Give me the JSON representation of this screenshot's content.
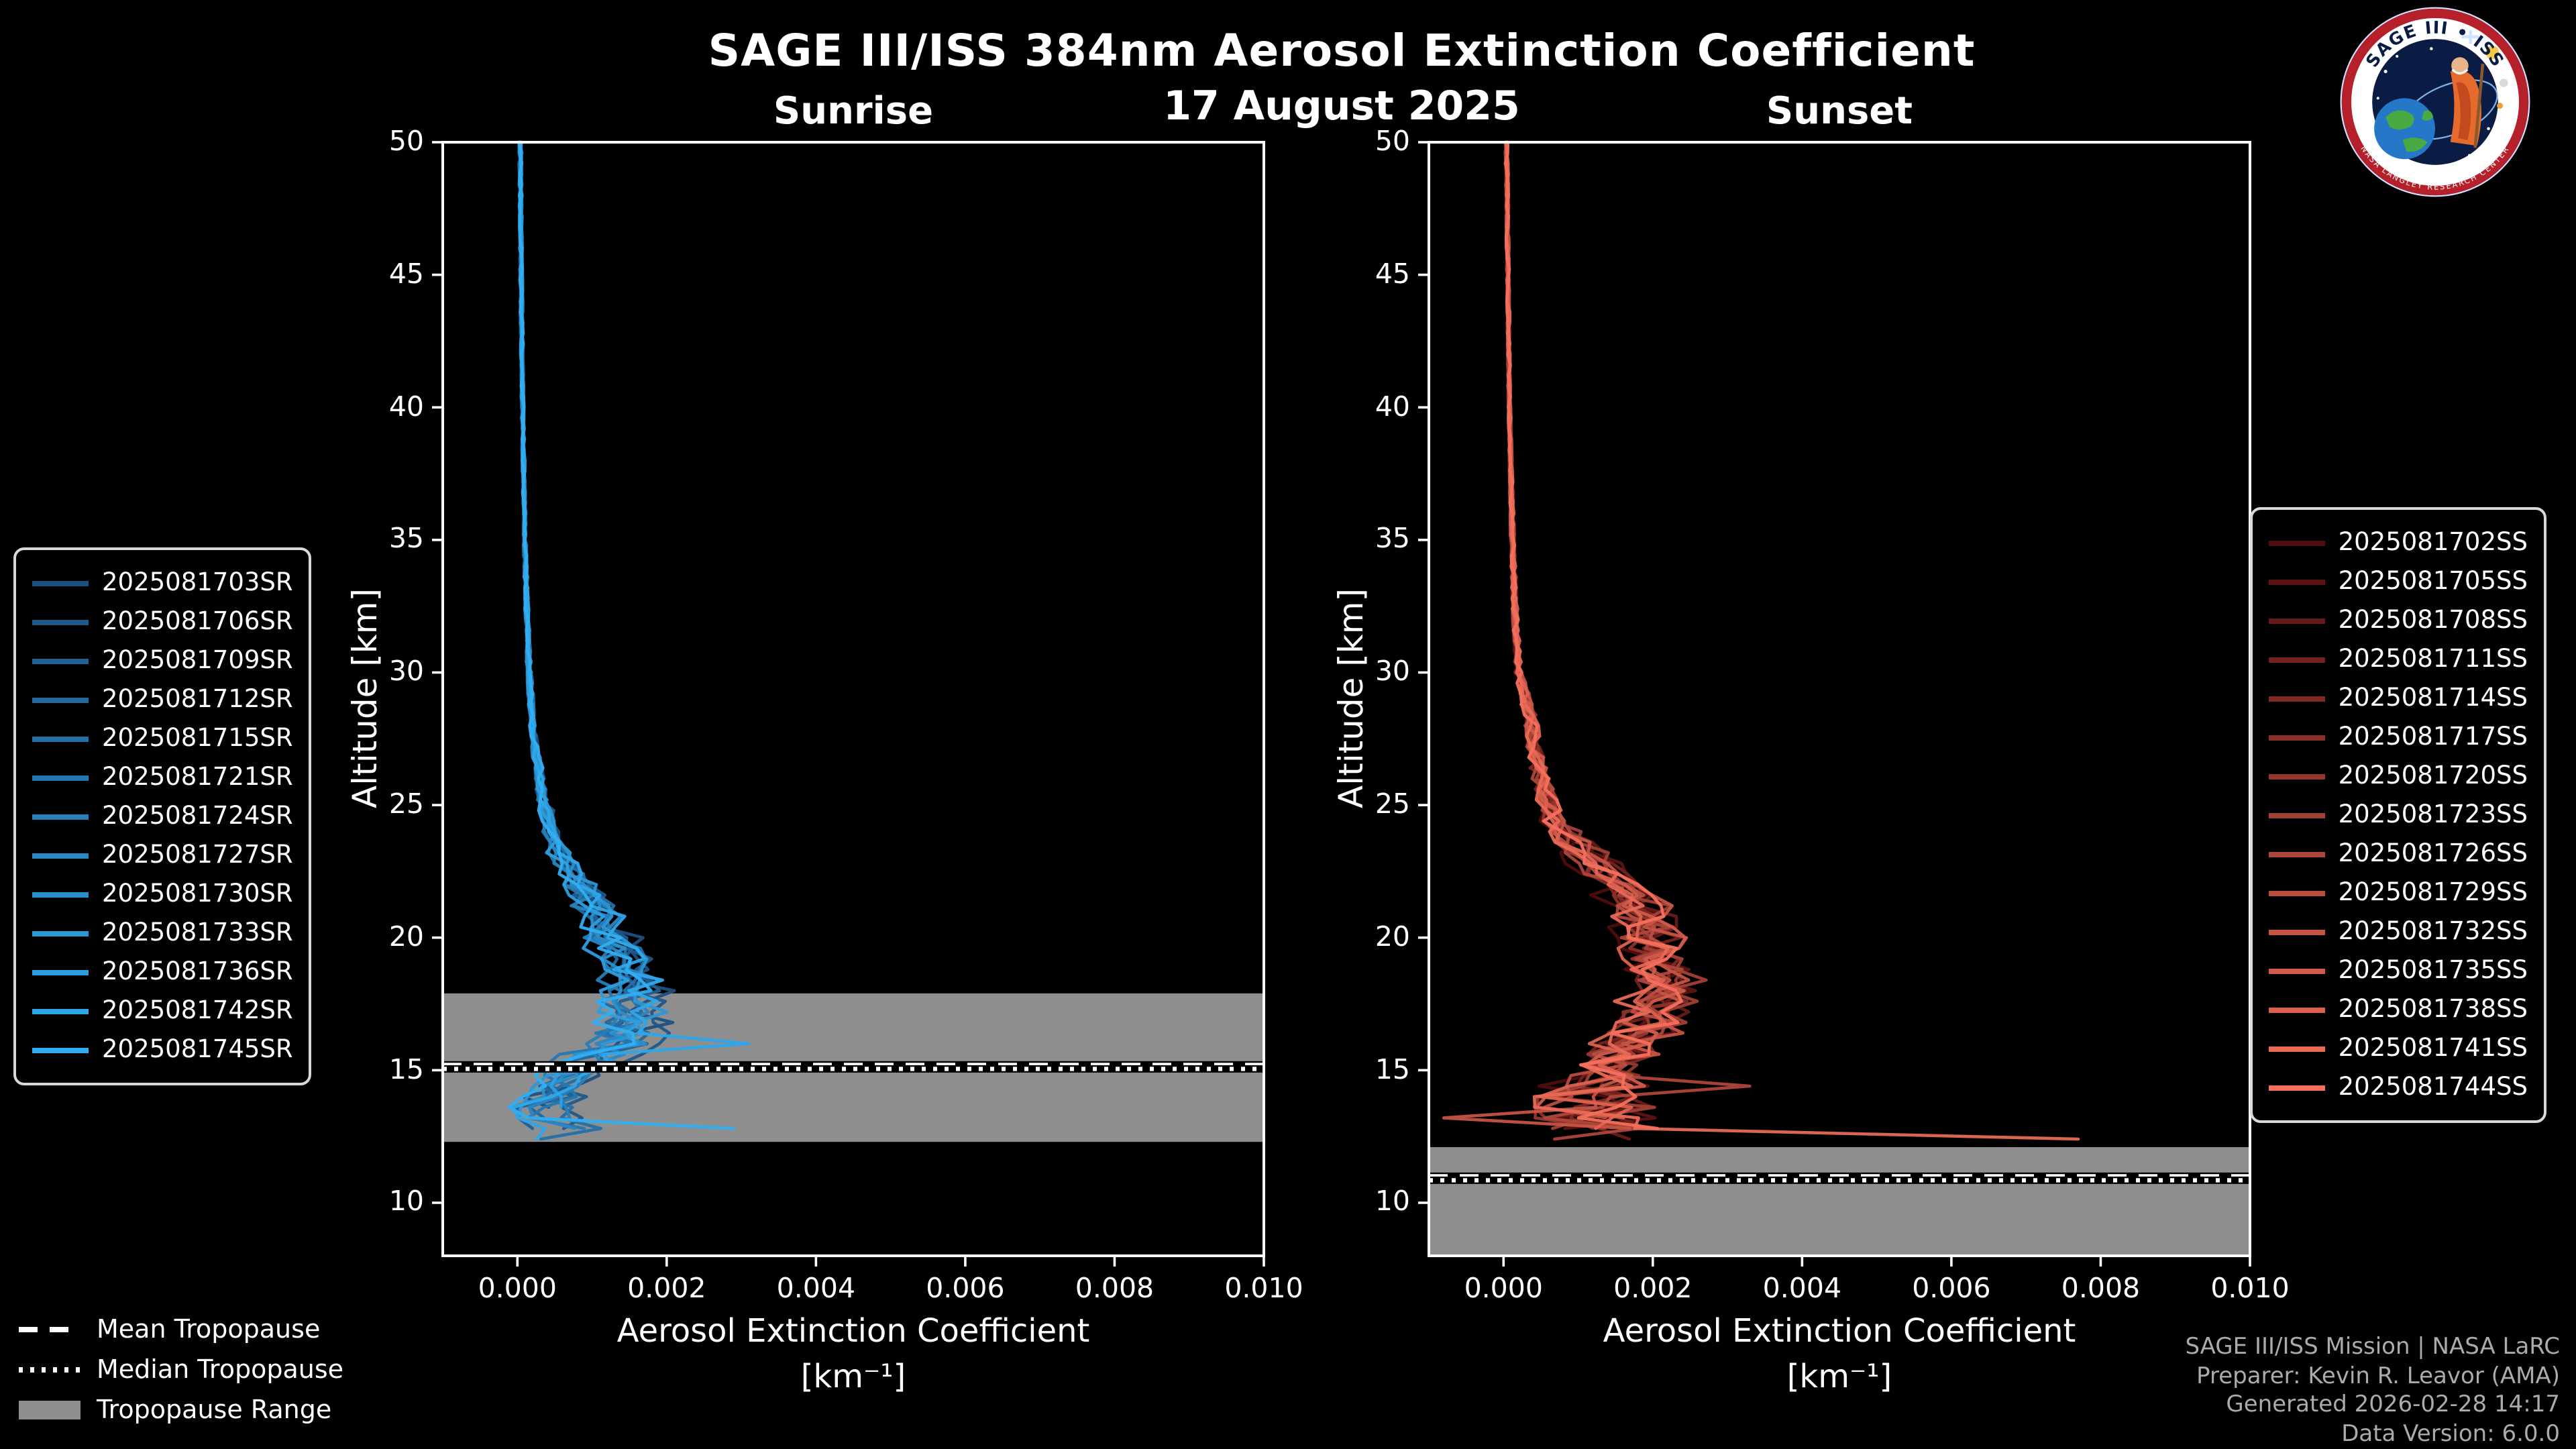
{
  "chart_data": {
    "type": "line",
    "title": "SAGE III/ISS 384nm Aerosol Extinction Coefficient",
    "subtitle": "17 August 2025",
    "xlabel": "Aerosol Extinction Coefficient",
    "xlabel_units": "[km⁻¹]",
    "ylabel": "Altitude [km]",
    "xlim": [
      -0.001,
      0.01
    ],
    "ylim": [
      8,
      50
    ],
    "band_color": "#8e8e8e",
    "xticks": [
      {
        "value": 0.0,
        "label": "0.000"
      },
      {
        "value": 0.002,
        "label": "0.002"
      },
      {
        "value": 0.004,
        "label": "0.004"
      },
      {
        "value": 0.006,
        "label": "0.006"
      },
      {
        "value": 0.008,
        "label": "0.008"
      },
      {
        "value": 0.01,
        "label": "0.010"
      }
    ],
    "yticks": [
      {
        "value": 10,
        "label": "10"
      },
      {
        "value": 15,
        "label": "15"
      },
      {
        "value": 20,
        "label": "20"
      },
      {
        "value": 25,
        "label": "25"
      },
      {
        "value": 30,
        "label": "30"
      },
      {
        "value": 35,
        "label": "35"
      },
      {
        "value": 40,
        "label": "40"
      },
      {
        "value": 45,
        "label": "45"
      },
      {
        "value": 50,
        "label": "50"
      }
    ],
    "panels": [
      {
        "id": "sunrise",
        "title": "Sunrise",
        "seed": 20250817,
        "color_start": "#1d5080",
        "color_end": "#31aef2",
        "bottom_alt": [
          12.3,
          13.4
        ],
        "series_labels": [
          "2025081703SR",
          "2025081706SR",
          "2025081709SR",
          "2025081712SR",
          "2025081715SR",
          "2025081721SR",
          "2025081724SR",
          "2025081727SR",
          "2025081730SR",
          "2025081733SR",
          "2025081736SR",
          "2025081742SR",
          "2025081745SR"
        ],
        "tropopause": {
          "mean": 15.2,
          "median": 15.05,
          "range": [
            12.3,
            17.9
          ]
        },
        "profile": {
          "altitude": [
            50,
            45,
            40,
            35,
            32,
            30,
            28,
            26,
            25,
            24,
            23,
            22,
            21,
            20,
            19,
            18,
            17,
            16.5,
            16,
            15.5,
            15,
            14.5,
            14,
            13.5,
            13,
            12.6,
            12.3
          ],
          "extinction": [
            4e-05,
            5e-05,
            7e-05,
            0.0001,
            0.00013,
            0.00016,
            0.0002,
            0.0003,
            0.00035,
            0.00045,
            0.0006,
            0.0008,
            0.00105,
            0.00125,
            0.0014,
            0.00155,
            0.0015,
            0.0015,
            0.00135,
            0.00105,
            0.0008,
            0.0006,
            0.00045,
            0.00035,
            0.0005,
            0.0009,
            0.0004
          ],
          "noise": [
            2e-05,
            2e-05,
            2e-05,
            2e-05,
            3e-05,
            4e-05,
            4e-05,
            7e-05,
            8e-05,
            0.0001,
            0.00013,
            0.00016,
            0.00025,
            0.0003,
            0.00032,
            0.00035,
            0.00038,
            0.0004,
            0.0004,
            0.00042,
            0.00045,
            0.00045,
            0.00048,
            0.0005,
            0.0005,
            0.00055,
            0.0005
          ]
        },
        "spikes": [
          {
            "series": 11,
            "altitude": 16.2,
            "value": 0.0031
          },
          {
            "series": 12,
            "altitude": 12.7,
            "value": 0.0029
          }
        ]
      },
      {
        "id": "sunset",
        "title": "Sunset",
        "seed": 20250818,
        "color_start": "#500d0d",
        "color_end": "#f4705c",
        "bottom_alt": [
          12.1,
          13.0
        ],
        "series_labels": [
          "2025081702SS",
          "2025081705SS",
          "2025081708SS",
          "2025081711SS",
          "2025081714SS",
          "2025081717SS",
          "2025081720SS",
          "2025081723SS",
          "2025081726SS",
          "2025081729SS",
          "2025081732SS",
          "2025081735SS",
          "2025081738SS",
          "2025081741SS",
          "2025081744SS"
        ],
        "tropopause": {
          "mean": 11.0,
          "median": 10.85,
          "range": [
            8,
            12.1
          ]
        },
        "profile": {
          "altitude": [
            50,
            45,
            40,
            35,
            32,
            30,
            29,
            28,
            27,
            26,
            25,
            24,
            23,
            22,
            21,
            20,
            19,
            18,
            17,
            16,
            15.5,
            15,
            14.5,
            14,
            13.5,
            13,
            12.6,
            12.2
          ],
          "extinction": [
            4e-05,
            6e-05,
            8e-05,
            0.00012,
            0.00016,
            0.0002,
            0.0003,
            0.00038,
            0.00042,
            0.0005,
            0.0006,
            0.0008,
            0.0012,
            0.0016,
            0.0019,
            0.0021,
            0.0022,
            0.0022,
            0.00205,
            0.0018,
            0.0016,
            0.0013,
            0.0013,
            0.0011,
            0.0012,
            0.0013,
            0.0016,
            0.0012
          ],
          "noise": [
            2e-05,
            2e-05,
            2e-05,
            3e-05,
            4e-05,
            5e-05,
            8e-05,
            0.0001,
            0.0001,
            0.00012,
            0.00015,
            0.0002,
            0.00028,
            0.0003,
            0.00035,
            0.0004,
            0.0004,
            0.0004,
            0.00042,
            0.00045,
            0.0005,
            0.0006,
            0.00065,
            0.0008,
            0.00085,
            0.0009,
            0.00095,
            0.0009
          ]
        },
        "spikes": [
          {
            "series": 13,
            "altitude": 12.5,
            "value": 0.0077
          },
          {
            "series": 10,
            "altitude": 13.1,
            "value": -0.0008
          },
          {
            "series": 8,
            "altitude": 14.6,
            "value": 0.0033
          }
        ]
      }
    ]
  },
  "tropopause_legend": [
    {
      "label": "Mean Tropopause",
      "style": "dashed"
    },
    {
      "label": "Median Tropopause",
      "style": "dotted"
    },
    {
      "label": "Tropopause Range",
      "style": "patch"
    }
  ],
  "footer": {
    "line1": "SAGE III/ISS Mission | NASA LaRC",
    "line2": "Preparer: Kevin R. Leavor (AMA)",
    "line3": "Generated 2026-02-28 14:17",
    "line4": "Data Version: 6.0.0"
  },
  "logo": {
    "title": "SAGE III • ISS",
    "ring_text": "NASA LANGLEY RESEARCH CENTER"
  }
}
